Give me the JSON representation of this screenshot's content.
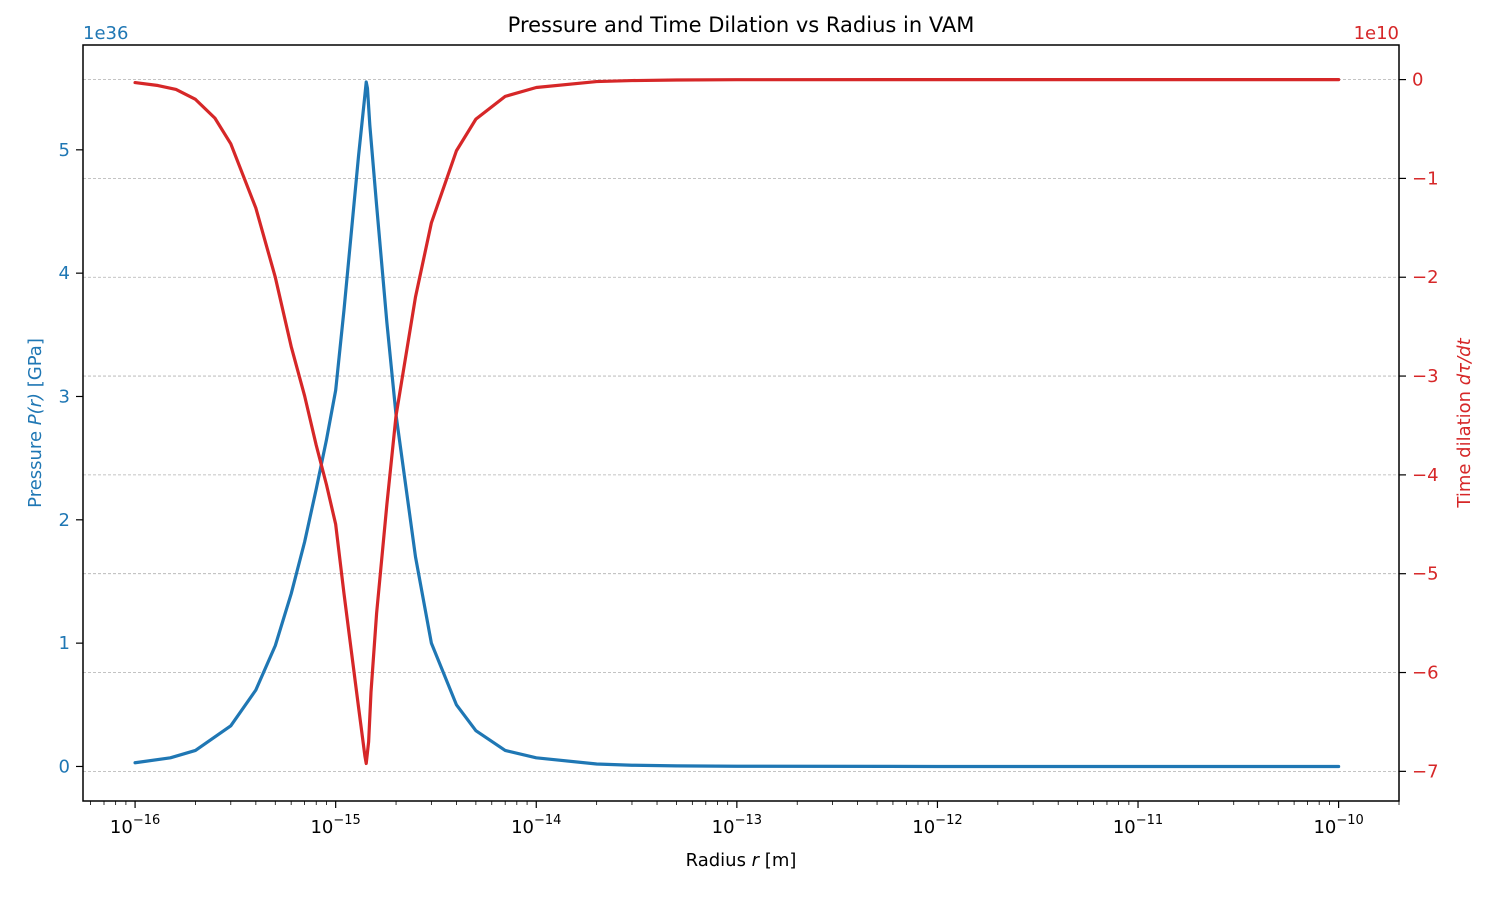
{
  "chart_data": {
    "type": "line",
    "title": "Pressure and Time Dilation vs Radius in VAM",
    "xlabel": "Radius r [m]",
    "xlabel_main": "Radius ",
    "xlabel_var": "r",
    "xlabel_unit": " [m]",
    "xscale": "log",
    "xlim": [
      5.5e-17,
      2e-10
    ],
    "x_ticks": [
      {
        "label": "10",
        "exp": "−16",
        "value": 1e-16
      },
      {
        "label": "10",
        "exp": "−15",
        "value": 1e-15
      },
      {
        "label": "10",
        "exp": "−14",
        "value": 1e-14
      },
      {
        "label": "10",
        "exp": "−13",
        "value": 1e-13
      },
      {
        "label": "10",
        "exp": "−12",
        "value": 1e-12
      },
      {
        "label": "10",
        "exp": "−11",
        "value": 1e-11
      },
      {
        "label": "10",
        "exp": "−10",
        "value": 1e-10
      }
    ],
    "left_axis": {
      "label": "Pressure P(r) [GPa]",
      "label_main": "Pressure ",
      "label_var": "P(r)",
      "label_unit": " [GPa]",
      "offset_text": "1e36",
      "ylim": [
        -0.28,
        5.85
      ],
      "ticks": [
        "0",
        "1",
        "2",
        "3",
        "4",
        "5"
      ],
      "color": "#1f77b4"
    },
    "right_axis": {
      "label": "Time dilation dτ/dt",
      "label_main": "Time dilation ",
      "label_var": "dτ/dt",
      "offset_text": "1e10",
      "ylim": [
        -7.3,
        0.35
      ],
      "ticks": [
        "0",
        "−1",
        "−2",
        "−3",
        "−4",
        "−5",
        "−6",
        "−7"
      ],
      "color": "#d62728"
    },
    "grid": "horizontal dashed",
    "series": [
      {
        "axis": "left",
        "color": "#1f77b4",
        "x": [
          1e-16,
          1.5e-16,
          2e-16,
          3e-16,
          4e-16,
          5e-16,
          6e-16,
          7e-16,
          8e-16,
          9e-16,
          1e-15,
          1.1e-15,
          1.2e-15,
          1.3e-15,
          1.4e-15,
          1.42e-15,
          1.44e-15,
          1.48e-15,
          1.6e-15,
          1.8e-15,
          2e-15,
          2.5e-15,
          3e-15,
          4e-15,
          5e-15,
          7e-15,
          1e-14,
          2e-14,
          3e-14,
          5e-14,
          1e-13,
          1e-12,
          1e-11,
          1e-10
        ],
        "values": [
          0.03,
          0.07,
          0.13,
          0.33,
          0.62,
          0.98,
          1.4,
          1.82,
          2.25,
          2.65,
          3.05,
          3.7,
          4.35,
          4.95,
          5.45,
          5.55,
          5.5,
          5.2,
          4.55,
          3.6,
          2.85,
          1.7,
          1.0,
          0.5,
          0.29,
          0.13,
          0.07,
          0.02,
          0.01,
          0.005,
          0.002,
          0.0,
          0.0,
          0.0
        ]
      },
      {
        "axis": "right",
        "color": "#d62728",
        "x": [
          1e-16,
          1.3e-16,
          1.6e-16,
          2e-16,
          2.5e-16,
          3e-16,
          4e-16,
          5e-16,
          6e-16,
          7e-16,
          8e-16,
          9e-16,
          1e-15,
          1.1e-15,
          1.2e-15,
          1.3e-15,
          1.4e-15,
          1.42e-15,
          1.46e-15,
          1.5e-15,
          1.6e-15,
          1.8e-15,
          2e-15,
          2.5e-15,
          3e-15,
          4e-15,
          5e-15,
          7e-15,
          1e-14,
          2e-14,
          3e-14,
          5e-14,
          1e-13,
          1e-12,
          1e-11,
          1e-10
        ],
        "values": [
          -0.03,
          -0.06,
          -0.1,
          -0.2,
          -0.39,
          -0.65,
          -1.3,
          -2.0,
          -2.7,
          -3.2,
          -3.7,
          -4.1,
          -4.5,
          -5.2,
          -5.8,
          -6.35,
          -6.85,
          -6.92,
          -6.7,
          -6.2,
          -5.4,
          -4.3,
          -3.4,
          -2.2,
          -1.45,
          -0.72,
          -0.4,
          -0.17,
          -0.08,
          -0.02,
          -0.01,
          -0.004,
          -0.001,
          0.0,
          0.0,
          0.0
        ]
      }
    ]
  }
}
